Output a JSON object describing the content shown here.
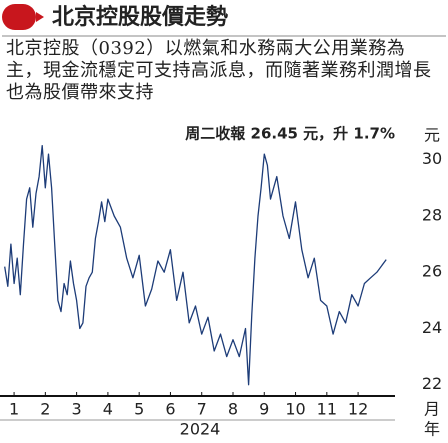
{
  "chart_data": {
    "type": "line",
    "title": "北京控股股價走勢",
    "subtitle": "北京控股（0392）以燃氣和水務兩大公用業務為主，現金流穩定可支持高派息，而隨著業務利潤增長也為股價帶來支持",
    "annotation": "周二收報 26.45 元，升 1.7%",
    "ylabel": "元",
    "xlabel": "月",
    "year": "2024",
    "year_label": "年",
    "x": [
      0.7,
      0.8,
      0.9,
      1.0,
      1.1,
      1.2,
      1.3,
      1.4,
      1.5,
      1.6,
      1.7,
      1.8,
      1.9,
      2.0,
      2.1,
      2.2,
      2.3,
      2.4,
      2.5,
      2.6,
      2.7,
      2.8,
      2.9,
      3.0,
      3.1,
      3.2,
      3.3,
      3.4,
      3.5,
      3.6,
      3.7,
      3.8,
      3.9,
      4.0,
      4.2,
      4.4,
      4.6,
      4.8,
      5.0,
      5.2,
      5.4,
      5.6,
      5.8,
      6.0,
      6.2,
      6.4,
      6.6,
      6.8,
      7.0,
      7.2,
      7.4,
      7.6,
      7.8,
      8.0,
      8.2,
      8.4,
      8.5,
      8.6,
      8.7,
      8.8,
      8.9,
      9.0,
      9.1,
      9.2,
      9.4,
      9.6,
      9.8,
      10.0,
      10.2,
      10.4,
      10.6,
      10.8,
      11.0,
      11.2,
      11.4,
      11.6,
      11.8,
      12.0,
      12.2,
      12.4,
      12.6,
      12.9
    ],
    "series": [
      {
        "name": "北京控股",
        "color": "#1d3c78",
        "values": [
          26.2,
          25.5,
          27.0,
          25.6,
          26.5,
          25.2,
          27.0,
          28.6,
          29.0,
          27.6,
          28.8,
          29.4,
          30.5,
          29.0,
          30.2,
          29.0,
          27.0,
          25.0,
          24.6,
          25.6,
          25.2,
          26.4,
          25.6,
          25.0,
          24.0,
          24.2,
          25.5,
          25.8,
          26.0,
          27.2,
          27.8,
          28.5,
          27.8,
          28.6,
          28.0,
          27.6,
          26.5,
          25.8,
          26.6,
          24.8,
          25.4,
          26.4,
          26.0,
          26.8,
          25.0,
          26.0,
          24.2,
          24.8,
          23.8,
          24.4,
          23.2,
          23.8,
          23.0,
          23.6,
          23.0,
          24.0,
          22.0,
          24.5,
          26.5,
          28.0,
          29.0,
          30.2,
          29.8,
          28.6,
          29.4,
          28.0,
          27.2,
          28.5,
          26.8,
          25.8,
          26.5,
          25.0,
          24.8,
          23.8,
          24.6,
          24.2,
          25.2,
          24.8,
          25.6,
          25.8,
          26.0,
          26.45
        ]
      }
    ],
    "xlim": [
      0.55,
      13.18
    ],
    "xticks": [
      1,
      2,
      3,
      4,
      5,
      6,
      7,
      8,
      9,
      10,
      11,
      12
    ],
    "ylim": [
      21.6,
      30.7
    ],
    "yticks": [
      22,
      24,
      26,
      28,
      30
    ]
  }
}
